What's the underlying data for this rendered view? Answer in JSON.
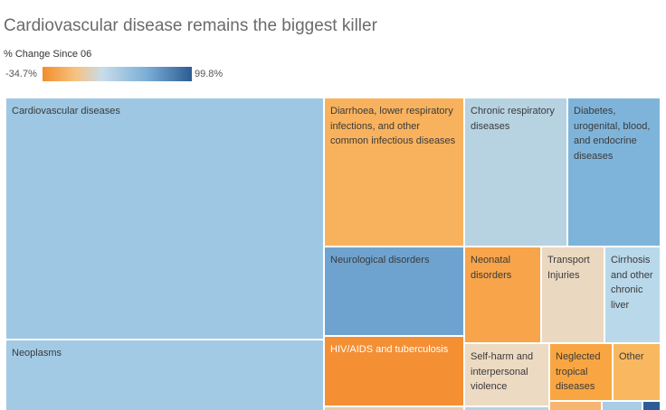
{
  "chart_data": {
    "type": "treemap",
    "title": "Cardiovascular disease remains the biggest killer",
    "legend": {
      "title": "% Change Since 06",
      "min_label": "-34.7%",
      "max_label": "99.8%",
      "min_value": -34.7,
      "max_value": 99.8,
      "colors": [
        "#f28e2b",
        "#f6c27f",
        "#c8dcea",
        "#7aaed6",
        "#2c5c93"
      ]
    },
    "tiles": [
      {
        "label": "Cardiovascular diseases",
        "color": "#9ec7e3",
        "text": "dark"
      },
      {
        "label": "Neoplasms",
        "color": "#a3cae5",
        "text": "dark"
      },
      {
        "label": "Diarrhoea, lower respiratory infections, and other common infectious diseases",
        "color": "#f8b25e",
        "text": "dark"
      },
      {
        "label": "Chronic respiratory diseases",
        "color": "#b7d3e2",
        "text": "dark"
      },
      {
        "label": "Diabetes, urogenital, blood, and endocrine diseases",
        "color": "#7fb4da",
        "text": "dark"
      },
      {
        "label": "Neurological disorders",
        "color": "#6fa3cf",
        "text": "dark"
      },
      {
        "label": "Neonatal disorders",
        "color": "#f7a44a",
        "text": "dark"
      },
      {
        "label": "Transport Injuries",
        "color": "#ead8c0",
        "text": "dark"
      },
      {
        "label": "Cirrhosis and other chronic liver",
        "color": "#b9d8ea",
        "text": "dark"
      },
      {
        "label": "HIV/AIDS and tuberculosis",
        "color": "#f48f34",
        "text": "light"
      },
      {
        "label": "Self-harm and interpersonal violence",
        "color": "#eddac3",
        "text": "dark"
      },
      {
        "label": "Neglected tropical diseases",
        "color": "#f9a642",
        "text": "dark"
      },
      {
        "label": "Other",
        "color": "#f9b860",
        "text": "dark"
      },
      {
        "label": "",
        "color": "#e3cdb0",
        "text": "dark"
      },
      {
        "label": "",
        "color": "#b7d3e2",
        "text": "dark"
      },
      {
        "label": "",
        "color": "#f6b570",
        "text": "dark"
      },
      {
        "label": "",
        "color": "#a9cde6",
        "text": "dark"
      },
      {
        "label": "",
        "color": "#2c5c93",
        "text": "light"
      }
    ]
  }
}
